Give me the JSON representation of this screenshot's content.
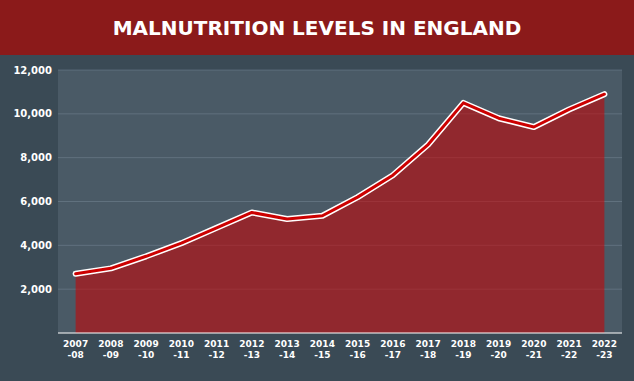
{
  "chart_data": {
    "type": "area",
    "title": "MALNUTRITION LEVELS IN ENGLAND",
    "categories": [
      "2007\n-08",
      "2008\n-09",
      "2009\n-10",
      "2010\n-11",
      "2011\n-12",
      "2012\n-13",
      "2013\n-14",
      "2014\n-15",
      "2015\n-16",
      "2016\n-17",
      "2017\n-18",
      "2018\n-19",
      "2019\n-20",
      "2020\n-21",
      "2021\n-22",
      "2022\n-23"
    ],
    "values": [
      2700,
      2950,
      3500,
      4100,
      4800,
      5500,
      5200,
      5350,
      6200,
      7200,
      8600,
      10500,
      9800,
      9400,
      10200,
      10896
    ],
    "color": "#cc0000",
    "ylim": [
      0,
      12000
    ],
    "yticks": [
      {
        "value": 2000,
        "label": "2,000"
      },
      {
        "value": 4000,
        "label": "4,000"
      },
      {
        "value": 6000,
        "label": "6,000"
      },
      {
        "value": 8000,
        "label": "8,000"
      },
      {
        "value": 10000,
        "label": "10,000"
      },
      {
        "value": 12000,
        "label": "12,000"
      }
    ],
    "grid": true
  }
}
